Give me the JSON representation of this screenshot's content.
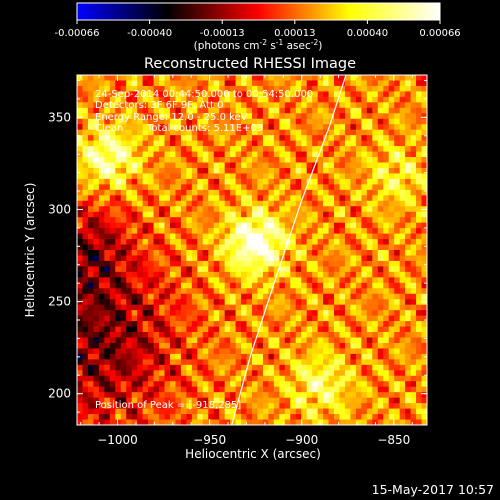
{
  "chart_data": {
    "type": "heatmap",
    "title": "Reconstructed RHESSI Image",
    "xlabel": "Heliocentric X (arcsec)",
    "ylabel": "Heliocentric Y (arcsec)",
    "xlim": [
      -1022,
      -832
    ],
    "ylim": [
      183,
      373
    ],
    "xticks": [
      -1000,
      -950,
      -900,
      -850
    ],
    "yticks": [
      200,
      250,
      300,
      350
    ],
    "colorbar": {
      "range": [
        -0.00066,
        0.00066
      ],
      "ticks": [
        "-0.00066",
        "-0.00040",
        "-0.00013",
        "0.00013",
        "0.00040",
        "0.00066"
      ],
      "unit_main": "(photons cm",
      "unit_exp1": "-2",
      "unit_mid1": " s",
      "unit_exp2": "-1",
      "unit_mid2": " asec",
      "unit_exp3": "-2",
      "unit_end": ")",
      "colormap": [
        "#0000ff",
        "#000000",
        "#ff0000",
        "#ffff00",
        "#ffffff"
      ]
    },
    "annotations": {
      "line1": "24-Sep-2014 00:44:50.000 to 00:54:50.000",
      "line2": "Detectors: 3F 6F 9F, Att 0",
      "line3": "Energy Range: 12.0 - 25.0 keV",
      "line4_a": "Clean",
      "line4_b": "Total counts: 5.11E+03",
      "peak": "Position of Peak = [-918,285]"
    },
    "peak_position": [
      -918,
      285
    ],
    "bright_sources": [
      {
        "x": -925,
        "y": 282,
        "weight": 1.0
      },
      {
        "x": -1005,
        "y": 328,
        "weight": 0.75
      },
      {
        "x": -890,
        "y": 205,
        "weight": 0.55
      },
      {
        "x": -848,
        "y": 318,
        "weight": 0.4
      }
    ],
    "limb_curve": [
      [
        -938,
        183
      ],
      [
        -928,
        220
      ],
      [
        -915,
        260
      ],
      [
        -900,
        305
      ],
      [
        -885,
        345
      ],
      [
        -876,
        373
      ]
    ]
  },
  "footer": {
    "timestamp": "15-May-2017 10:57"
  }
}
